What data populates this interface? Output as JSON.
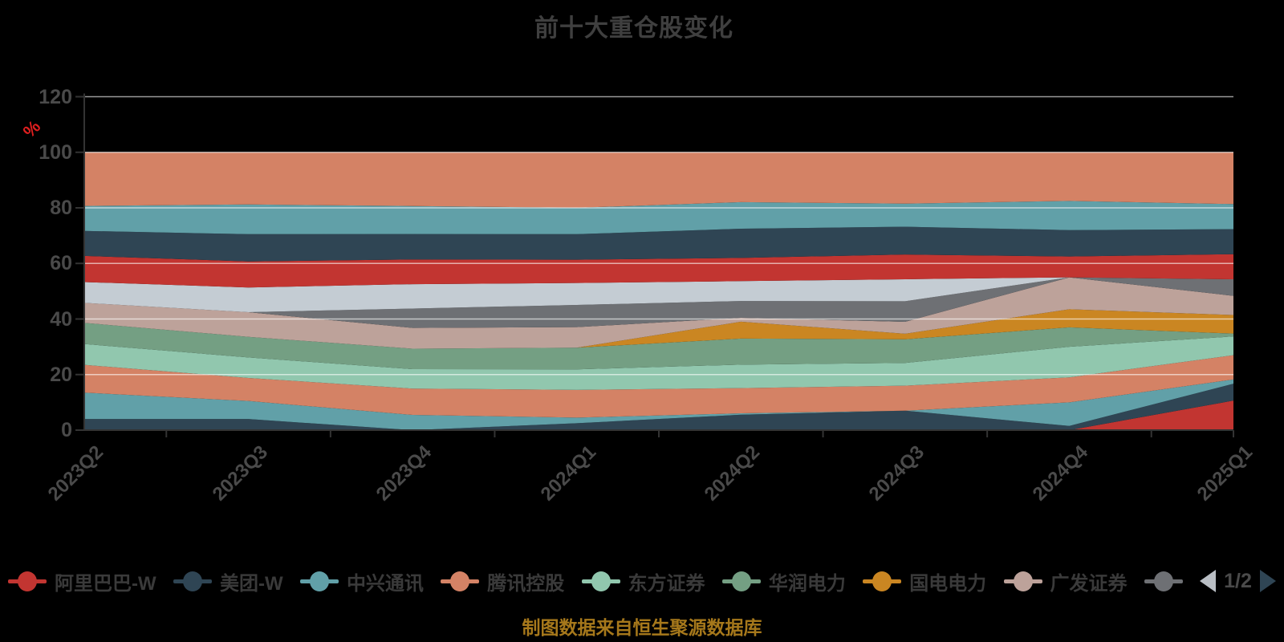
{
  "title": "前十大重仓股变化",
  "y_axis": {
    "unit": "%",
    "ticks": [
      0,
      20,
      40,
      60,
      80,
      100,
      120
    ]
  },
  "footer": "制图数据来自恒生聚源数据库",
  "legend": {
    "items": [
      {
        "label": "阿里巴巴-W",
        "color": "#c23531"
      },
      {
        "label": "美团-W",
        "color": "#2f4554"
      },
      {
        "label": "中兴通讯",
        "color": "#61a0a8"
      },
      {
        "label": "腾讯控股",
        "color": "#d48265"
      },
      {
        "label": "东方证券",
        "color": "#91c7ae"
      },
      {
        "label": "华润电力",
        "color": "#749f83"
      },
      {
        "label": "国电电力",
        "color": "#ca8622"
      },
      {
        "label": "广发证券",
        "color": "#bda29a"
      },
      {
        "label": "",
        "color": "#6e7074"
      }
    ],
    "pagination": {
      "current": "1/2",
      "prev_arrow": "left",
      "next_arrow": "right"
    }
  },
  "chart_data": {
    "type": "area",
    "stack": "percent",
    "title": "前十大重仓股变化",
    "ylabel": "%",
    "ylim": [
      0,
      120
    ],
    "grid": true,
    "legend_position": "bottom",
    "x": [
      "2023Q2",
      "2023Q3",
      "2023Q4",
      "2024Q1",
      "2024Q2",
      "2024Q3",
      "2024Q4",
      "2025Q1"
    ],
    "series": [
      {
        "name": "阿里巴巴-W",
        "color": "#c23531",
        "values": [
          0,
          0,
          0,
          0,
          0,
          0,
          0,
          10.5
        ]
      },
      {
        "name": "美团-W",
        "color": "#2f4554",
        "values": [
          4,
          4,
          0,
          2.5,
          5.5,
          7,
          1.5,
          6
        ]
      },
      {
        "name": "中兴通讯",
        "color": "#61a0a8",
        "values": [
          9.5,
          6.5,
          5.5,
          2,
          0.5,
          0,
          8.5,
          1.5
        ]
      },
      {
        "name": "腾讯控股",
        "color": "#d48265",
        "values": [
          10,
          8.3,
          9.5,
          10,
          9,
          9,
          9,
          8.6
        ]
      },
      {
        "name": "东方证券",
        "color": "#91c7ae",
        "values": [
          7.5,
          7.4,
          7,
          7.4,
          8.4,
          8.2,
          11,
          6.7
        ]
      },
      {
        "name": "华润电力",
        "color": "#749f83",
        "values": [
          7.6,
          7.4,
          7.4,
          7.8,
          9.3,
          8.5,
          7,
          1
        ]
      },
      {
        "name": "国电电力",
        "color": "#ca8622",
        "values": [
          0,
          0,
          0,
          0,
          6,
          2,
          6.5,
          6.6
        ]
      },
      {
        "name": "广发证券",
        "color": "#bda29a",
        "values": [
          7.2,
          8.9,
          7.5,
          7.4,
          1.4,
          4.3,
          11.5,
          6.8
        ]
      },
      {
        "name": "",
        "color": "#6e7074",
        "values": [
          0,
          0,
          7,
          8,
          6,
          7.4,
          0,
          5.9
        ]
      },
      {
        "name": "",
        "color": "#c4ccd3",
        "values": [
          7.5,
          8.9,
          8.8,
          7.9,
          7.1,
          7.9,
          0,
          0
        ]
      },
      {
        "name": "",
        "color": "#c23531",
        "values": [
          9.4,
          9.4,
          8.9,
          8.4,
          8.3,
          8.9,
          7.5,
          8.9
        ]
      },
      {
        "name": "",
        "color": "#2f4554",
        "values": [
          9,
          9.8,
          9.2,
          9.2,
          10.4,
          10,
          9.5,
          8.9
        ]
      },
      {
        "name": "",
        "color": "#61a0a8",
        "values": [
          9,
          10.7,
          10.1,
          9.5,
          9.5,
          8.3,
          10.5,
          8.9
        ]
      },
      {
        "name": "",
        "color": "#d48265",
        "values": [
          19.3,
          18.8,
          19.4,
          20,
          17.8,
          18.5,
          17.5,
          18.4
        ]
      }
    ]
  }
}
